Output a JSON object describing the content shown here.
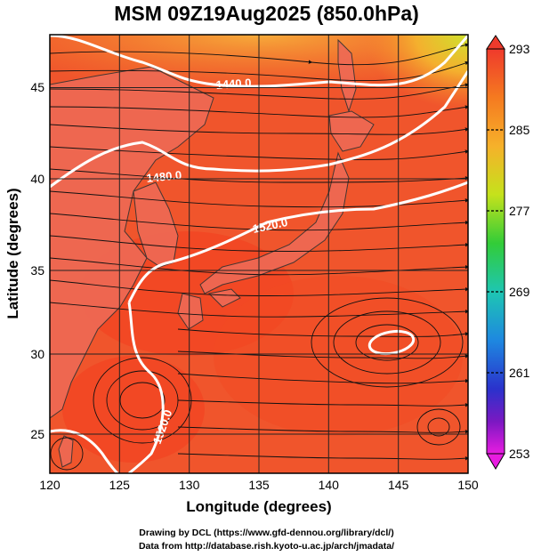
{
  "title": "MSM 09Z19Aug2025 (850.0hPa)",
  "axes": {
    "xlabel": "Longitude (degrees)",
    "ylabel": "Latitude  (degrees)",
    "xticks": [
      "120",
      "125",
      "130",
      "135",
      "140",
      "145",
      "150"
    ],
    "yticks": [
      "25",
      "30",
      "35",
      "40",
      "45"
    ]
  },
  "colorbar": {
    "ticks": [
      "293",
      "285",
      "277",
      "269",
      "261",
      "253"
    ]
  },
  "contours": [
    {
      "label": "1440.0"
    },
    {
      "label": "1480.0"
    },
    {
      "label": "1520.0"
    },
    {
      "label": "1520.0"
    }
  ],
  "credits": {
    "line1": "Drawing by DCL (https://www.gfd-dennou.org/library/dcl/)",
    "line2": "Data from http://database.rish.kyoto-u.ac.jp/arch/jmadata/"
  },
  "colors": {
    "field_main": "#f0552c",
    "field_warm": "#f3401f",
    "field_cool": "#f58a2c",
    "field_north": "#f6b53a",
    "field_ne": "#cfe22c",
    "contour": "#ffffff",
    "land_tint": "#ef6a55"
  },
  "chart_data": {
    "type": "heatmap",
    "title": "MSM 09Z19Aug2025 (850.0hPa)",
    "xlabel": "Longitude (degrees)",
    "ylabel": "Latitude  (degrees)",
    "xlim": [
      120,
      150
    ],
    "ylim": [
      22.5,
      47.5
    ],
    "colorbar_range": [
      253,
      293
    ],
    "colorbar_ticks": [
      293,
      285,
      277,
      269,
      261,
      253
    ],
    "contour_levels": [
      1440.0,
      1480.0,
      1520.0
    ]
  }
}
